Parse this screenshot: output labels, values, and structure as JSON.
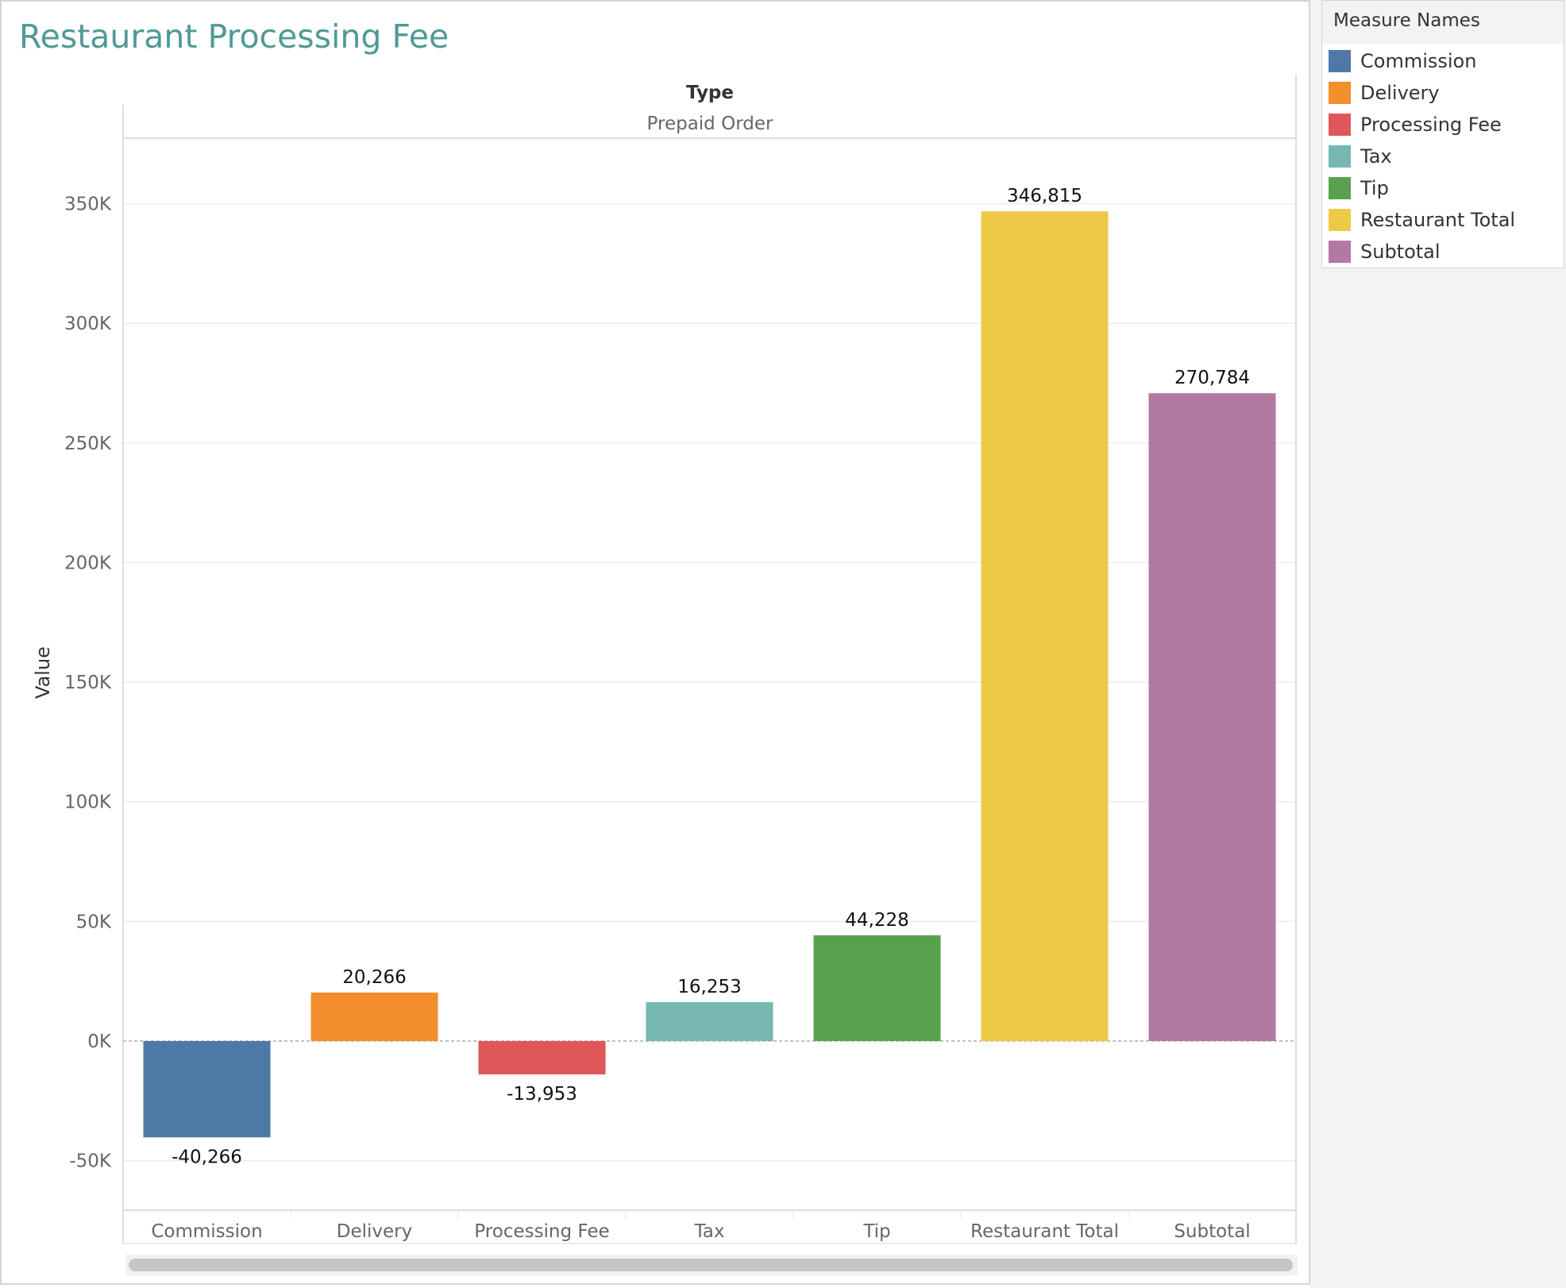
{
  "title": "Restaurant Processing Fee",
  "header": {
    "type_label": "Type",
    "type_value": "Prepaid Order"
  },
  "legend": {
    "title": "Measure Names",
    "items": [
      {
        "label": "Commission",
        "color": "#4e79a7"
      },
      {
        "label": "Delivery",
        "color": "#f28e2b"
      },
      {
        "label": "Processing Fee",
        "color": "#e15759"
      },
      {
        "label": "Tax",
        "color": "#76b7b2"
      },
      {
        "label": "Tip",
        "color": "#59a14f"
      },
      {
        "label": "Restaurant Total",
        "color": "#edc948"
      },
      {
        "label": "Subtotal",
        "color": "#b07aa1"
      }
    ]
  },
  "chart_data": {
    "type": "bar",
    "ylabel": "Value",
    "ylim": [
      -70000,
      380000
    ],
    "yticks": [
      -50000,
      0,
      50000,
      100000,
      150000,
      200000,
      250000,
      300000,
      350000
    ],
    "ytick_labels": [
      "-50K",
      "0K",
      "50K",
      "100K",
      "150K",
      "200K",
      "250K",
      "300K",
      "350K"
    ],
    "categories": [
      "Commission",
      "Delivery",
      "Processing Fee",
      "Tax",
      "Tip",
      "Restaurant Total",
      "Subtotal"
    ],
    "values": [
      -40266,
      20266,
      -13953,
      16253,
      44228,
      346815,
      270784
    ],
    "data_labels": [
      "-40,266",
      "20,266",
      "-13,953",
      "16,253",
      "44,228",
      "346,815",
      "270,784"
    ],
    "colors": [
      "#4e79a7",
      "#f28e2b",
      "#e15759",
      "#76b7b2",
      "#59a14f",
      "#edc948",
      "#b07aa1"
    ],
    "grid": true,
    "legend_position": "right"
  }
}
